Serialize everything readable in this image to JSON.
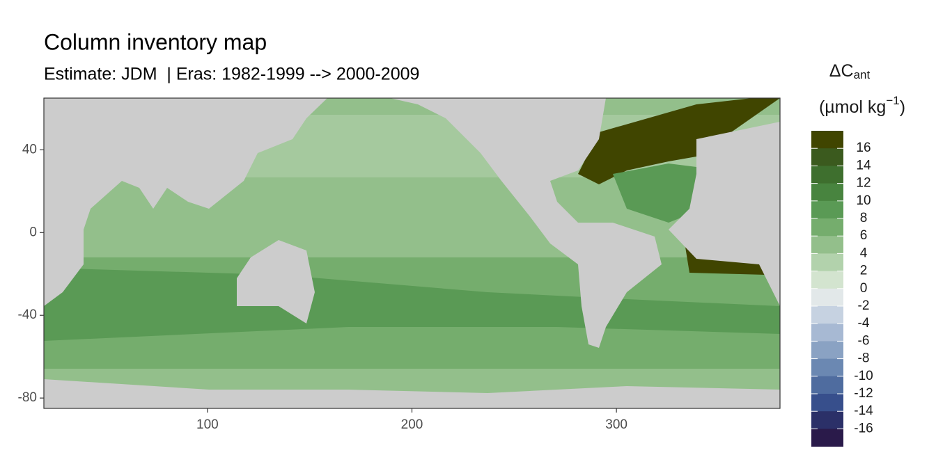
{
  "chart_data": {
    "type": "raster-map",
    "title": "Column inventory map",
    "subtitle": "Estimate: JDM  | Eras: 1982-1999 --> 2000-2009",
    "xlim": [
      20,
      380
    ],
    "ylim": [
      -85,
      65
    ],
    "xticks": [
      100,
      200,
      300
    ],
    "yticks": [
      40,
      0,
      -40,
      -80
    ],
    "legend": {
      "title_main": "ΔC",
      "title_sub": "ant",
      "unit_main": "(µmol kg",
      "unit_sup": "−1",
      "unit_close": ")",
      "breaks": [
        16,
        14,
        12,
        10,
        8,
        6,
        4,
        2,
        0,
        -2,
        -4,
        -6,
        -8,
        -10,
        -12,
        -14,
        -16
      ],
      "colors": [
        "#404500",
        "#3b5a1e",
        "#3e6f2e",
        "#48843f",
        "#5a9a55",
        "#75ad6d",
        "#93bf8b",
        "#b2d2ac",
        "#d3e4cf",
        "#e2e8e9",
        "#c6d2e1",
        "#a7b9d3",
        "#8aa2c3",
        "#6b88b2",
        "#4f6c9f",
        "#374f8c",
        "#2b3068",
        "#2a1a4a"
      ]
    }
  }
}
